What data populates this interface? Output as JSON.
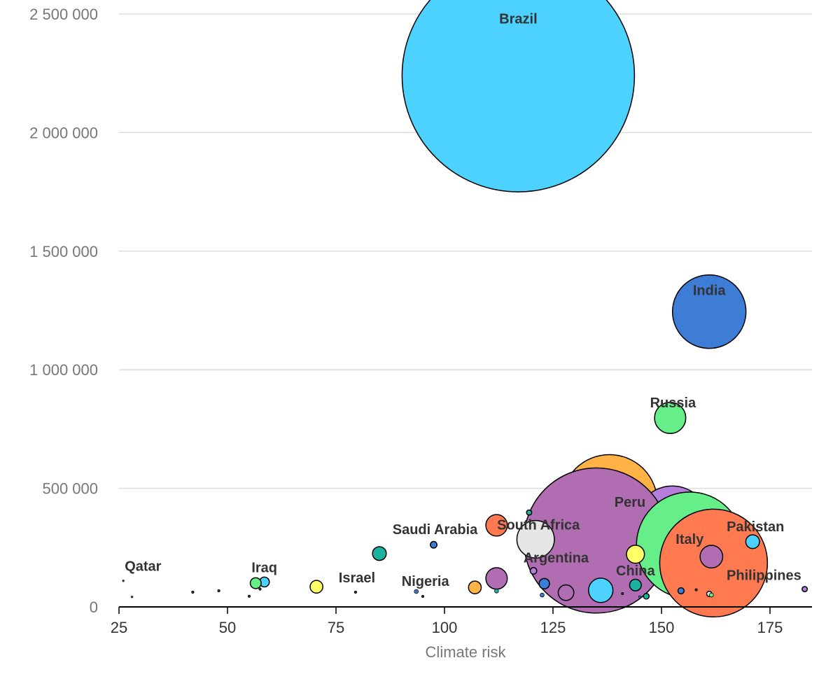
{
  "chart_data": {
    "type": "scatter",
    "variant": "bubble",
    "xlabel": "Climate risk",
    "ylabel": "",
    "xlim": [
      25,
      184
    ],
    "ylim": [
      0,
      2550000
    ],
    "x_ticks": [
      25,
      50,
      75,
      100,
      125,
      150,
      175
    ],
    "x_tick_labels": [
      "25",
      "50",
      "75",
      "100",
      "125",
      "150",
      "175"
    ],
    "y_ticks": [
      0,
      500000,
      1000000,
      1500000,
      2000000,
      2500000
    ],
    "y_tick_labels": [
      "0",
      "500 000",
      "1 000 000",
      "1 500 000",
      "2 000 000",
      "2 500 000"
    ],
    "grid": "horizontal",
    "legend": "none",
    "label_color": "#333333",
    "points": [
      {
        "label": "Brazil",
        "x": 117,
        "y": 2240000,
        "size": 10000,
        "color": "#4dd2ff"
      },
      {
        "label": "India",
        "x": 161,
        "y": 1245000,
        "size": 1000,
        "color": "#3d7dd6"
      },
      {
        "label": "Russia",
        "x": 152,
        "y": 797000,
        "size": 180,
        "color": "#66ee88"
      },
      {
        "label": "",
        "x": 138,
        "y": 440000,
        "size": 1700,
        "color": "#ffb347"
      },
      {
        "label": "",
        "x": 152.5,
        "y": 355000,
        "size": 1000,
        "color": "#b57edc"
      },
      {
        "label": "Peru",
        "x": 135,
        "y": 280000,
        "size": 3900,
        "color": "#b06db1"
      },
      {
        "label": "Italy",
        "x": 156.5,
        "y": 260000,
        "size": 2100,
        "color": "#66ee88"
      },
      {
        "label": "Philippines",
        "x": 162,
        "y": 185000,
        "size": 2150,
        "color": "#ff7a50"
      },
      {
        "label": "",
        "x": 161.5,
        "y": 212000,
        "size": 95,
        "color": "#b06db1"
      },
      {
        "label": "South Africa",
        "x": 121,
        "y": 285000,
        "size": 260,
        "color": "#e6e6e6"
      },
      {
        "label": "",
        "x": 119.5,
        "y": 398000,
        "size": 5,
        "color": "#19b3a0"
      },
      {
        "label": "",
        "x": 112,
        "y": 344000,
        "size": 85,
        "color": "#ff7a50"
      },
      {
        "label": "Saudi Arabia",
        "x": 97.5,
        "y": 262000,
        "size": 8,
        "color": "#3d7dd6"
      },
      {
        "label": "",
        "x": 85,
        "y": 225000,
        "size": 35,
        "color": "#19b3a0"
      },
      {
        "label": "Pakistan",
        "x": 171,
        "y": 275000,
        "size": 35,
        "color": "#4dd2ff"
      },
      {
        "label": "",
        "x": 144,
        "y": 222000,
        "size": 60,
        "color": "#ffff66"
      },
      {
        "label": "China",
        "x": 144,
        "y": 92000,
        "size": 25,
        "color": "#19b3a0"
      },
      {
        "label": "",
        "x": 136,
        "y": 70000,
        "size": 110,
        "color": "#4dd2ff"
      },
      {
        "label": "",
        "x": 128,
        "y": 60000,
        "size": 45,
        "color": "#b06db1"
      },
      {
        "label": "Argentina",
        "x": 112,
        "y": 120000,
        "size": 85,
        "color": "#b06db1"
      },
      {
        "label": "",
        "x": 120.5,
        "y": 152000,
        "size": 8,
        "color": "#b57edc"
      },
      {
        "label": "",
        "x": 123,
        "y": 98000,
        "size": 20,
        "color": "#3d7dd6"
      },
      {
        "label": "",
        "x": 122.5,
        "y": 50000,
        "size": 3,
        "color": "#3d7dd6"
      },
      {
        "label": "",
        "x": 112,
        "y": 67000,
        "size": 3,
        "color": "#19b3a0"
      },
      {
        "label": "",
        "x": 107,
        "y": 82000,
        "size": 30,
        "color": "#ffb347"
      },
      {
        "label": "Nigeria",
        "x": 93.5,
        "y": 65000,
        "size": 3,
        "color": "#3d7dd6"
      },
      {
        "label": "",
        "x": 95,
        "y": 44000,
        "size": 1,
        "color": "#333333"
      },
      {
        "label": "Israel",
        "x": 79.5,
        "y": 62000,
        "size": 1,
        "color": "#333333"
      },
      {
        "label": "",
        "x": 70.5,
        "y": 85000,
        "size": 30,
        "color": "#ffff66"
      },
      {
        "label": "Iraq",
        "x": 58.5,
        "y": 105000,
        "size": 18,
        "color": "#4dd2ff"
      },
      {
        "label": "",
        "x": 56.5,
        "y": 100000,
        "size": 22,
        "color": "#66ee88"
      },
      {
        "label": "",
        "x": 57.5,
        "y": 75000,
        "size": 1,
        "color": "#333333"
      },
      {
        "label": "",
        "x": 55,
        "y": 45000,
        "size": 1,
        "color": "#333333"
      },
      {
        "label": "",
        "x": 48,
        "y": 68000,
        "size": 1,
        "color": "#333333"
      },
      {
        "label": "",
        "x": 42,
        "y": 62000,
        "size": 1,
        "color": "#333333"
      },
      {
        "label": "Qatar",
        "x": 26,
        "y": 110000,
        "size": 0.3,
        "color": "#3d7dd6"
      },
      {
        "label": "",
        "x": 28,
        "y": 42000,
        "size": 0.3,
        "color": "#3d7dd6"
      },
      {
        "label": "",
        "x": 154.5,
        "y": 68000,
        "size": 7,
        "color": "#3d7dd6"
      },
      {
        "label": "",
        "x": 158,
        "y": 72000,
        "size": 1,
        "color": "#333333"
      },
      {
        "label": "",
        "x": 161,
        "y": 55000,
        "size": 5,
        "color": "#e6e6e6"
      },
      {
        "label": "",
        "x": 161.5,
        "y": 50000,
        "size": 3,
        "color": "#66ee88"
      },
      {
        "label": "",
        "x": 146.5,
        "y": 45000,
        "size": 6,
        "color": "#19b3a0"
      },
      {
        "label": "",
        "x": 145,
        "y": 42000,
        "size": 1,
        "color": "#3d7dd6"
      },
      {
        "label": "",
        "x": 141,
        "y": 56000,
        "size": 1,
        "color": "#333333"
      },
      {
        "label": "",
        "x": 183,
        "y": 75000,
        "size": 5,
        "color": "#b57edc"
      }
    ]
  }
}
